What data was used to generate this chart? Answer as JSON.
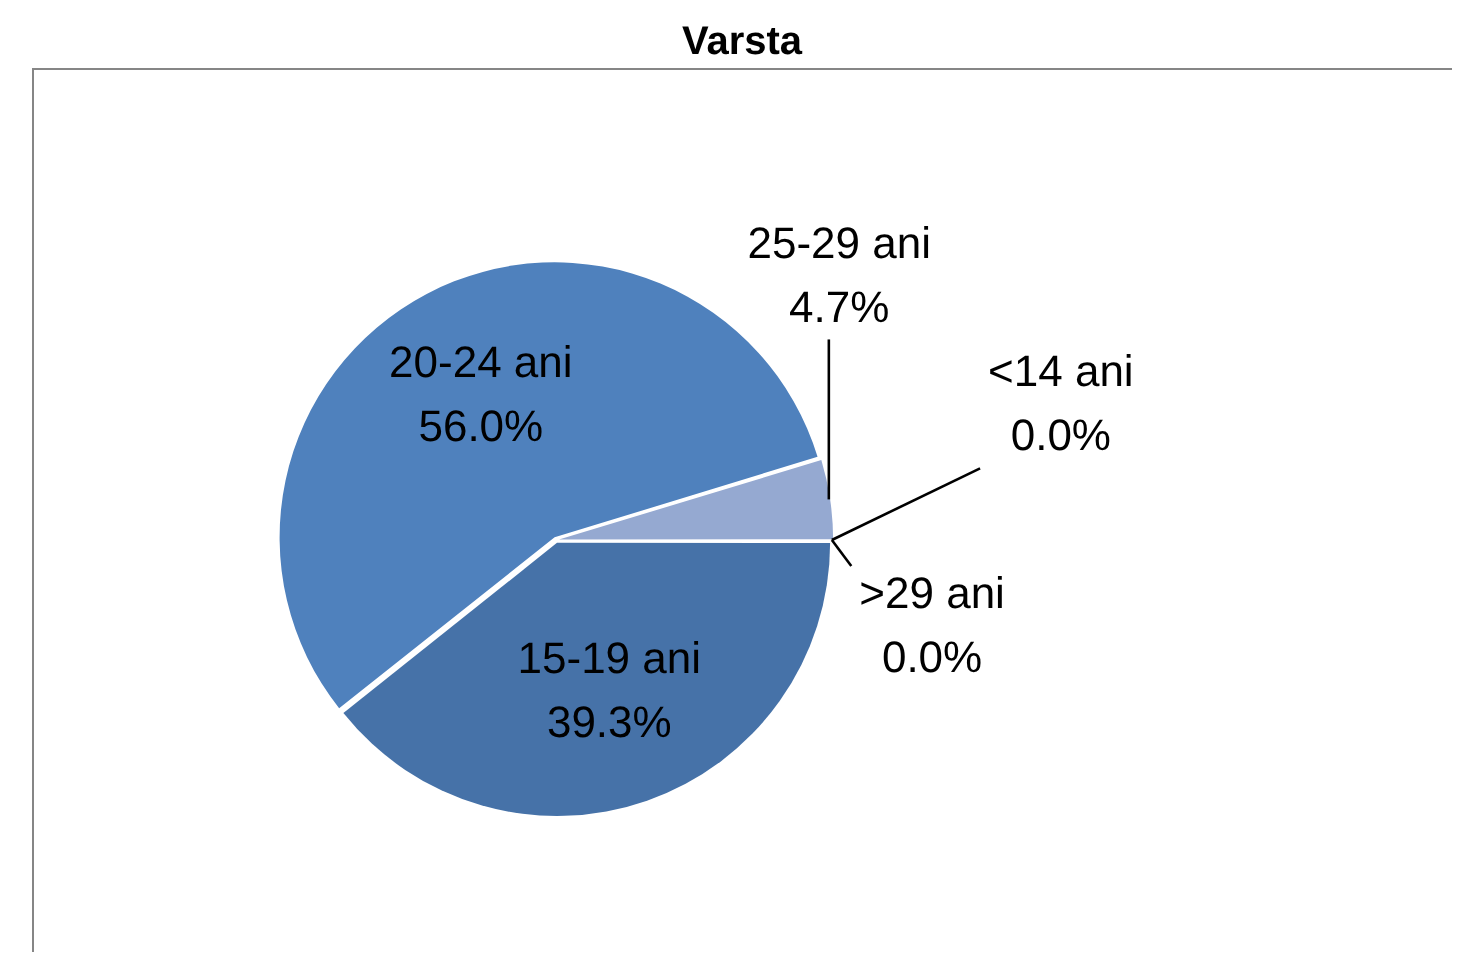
{
  "chart_data": {
    "type": "pie",
    "title": "Varsta",
    "categories": [
      "<14 ani",
      "15-19 ani",
      "20-24 ani",
      "25-29 ani",
      ">29 ani"
    ],
    "values": [
      0,
      39.3,
      56.0,
      4.7,
      0
    ],
    "colors": [
      "#3b6596",
      "#4672a8",
      "#4f81bd",
      "#95a9d1",
      "#b9c6e0"
    ],
    "value_labels": [
      "0.0%",
      "39.3%",
      "56.0%",
      "4.7%",
      "0.0%"
    ]
  }
}
